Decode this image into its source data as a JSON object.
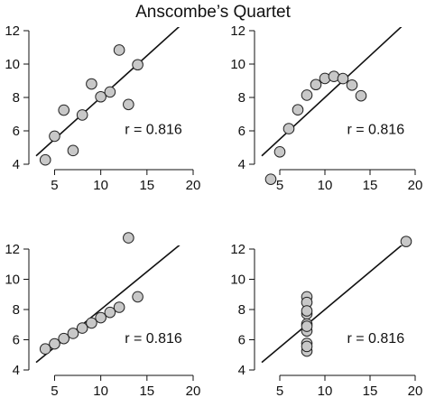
{
  "figure": {
    "title": "Anscombe’s Quartet"
  },
  "colors": {
    "point_fill": "#c8c8c8",
    "point_stroke": "#222222",
    "line": "#111111",
    "axis": "#111111"
  },
  "chart_data": [
    {
      "type": "scatter",
      "x": [
        10,
        8,
        13,
        9,
        11,
        14,
        6,
        4,
        12,
        7,
        5
      ],
      "y": [
        8.04,
        6.95,
        7.58,
        8.81,
        8.33,
        9.96,
        7.24,
        4.26,
        10.84,
        4.82,
        5.68
      ],
      "fit_line": {
        "intercept": 3.0,
        "slope": 0.5
      },
      "annotation": "r = 0.816",
      "xlim": [
        3,
        20
      ],
      "ylim": [
        4,
        12
      ],
      "xticks": [
        5,
        10,
        15,
        20
      ],
      "yticks": [
        4,
        6,
        8,
        10,
        12
      ],
      "grid": false
    },
    {
      "type": "scatter",
      "x": [
        10,
        8,
        13,
        9,
        11,
        14,
        6,
        4,
        12,
        7,
        5
      ],
      "y": [
        9.14,
        8.14,
        8.74,
        8.77,
        9.26,
        8.1,
        6.13,
        3.1,
        9.13,
        7.26,
        4.74
      ],
      "fit_line": {
        "intercept": 3.0,
        "slope": 0.5
      },
      "annotation": "r = 0.816",
      "xlim": [
        3,
        20
      ],
      "ylim": [
        4,
        12
      ],
      "xticks": [
        5,
        10,
        15,
        20
      ],
      "yticks": [
        4,
        6,
        8,
        10,
        12
      ],
      "grid": false
    },
    {
      "type": "scatter",
      "x": [
        10,
        8,
        13,
        9,
        11,
        14,
        6,
        4,
        12,
        7,
        5
      ],
      "y": [
        7.46,
        6.77,
        12.74,
        7.11,
        7.81,
        8.84,
        6.08,
        5.39,
        8.15,
        6.42,
        5.73
      ],
      "fit_line": {
        "intercept": 3.0,
        "slope": 0.5
      },
      "annotation": "r = 0.816",
      "xlim": [
        3,
        20
      ],
      "ylim": [
        4,
        12
      ],
      "xticks": [
        5,
        10,
        15,
        20
      ],
      "yticks": [
        4,
        6,
        8,
        10,
        12
      ],
      "grid": false
    },
    {
      "type": "scatter",
      "x": [
        8,
        8,
        8,
        8,
        8,
        8,
        8,
        19,
        8,
        8,
        8
      ],
      "y": [
        6.58,
        5.76,
        7.71,
        8.84,
        8.47,
        7.04,
        5.25,
        12.5,
        5.56,
        7.91,
        6.89
      ],
      "fit_line": {
        "intercept": 3.0,
        "slope": 0.5
      },
      "annotation": "r = 0.816",
      "xlim": [
        3,
        20
      ],
      "ylim": [
        4,
        12
      ],
      "xticks": [
        5,
        10,
        15,
        20
      ],
      "yticks": [
        4,
        6,
        8,
        10,
        12
      ],
      "grid": false
    }
  ]
}
